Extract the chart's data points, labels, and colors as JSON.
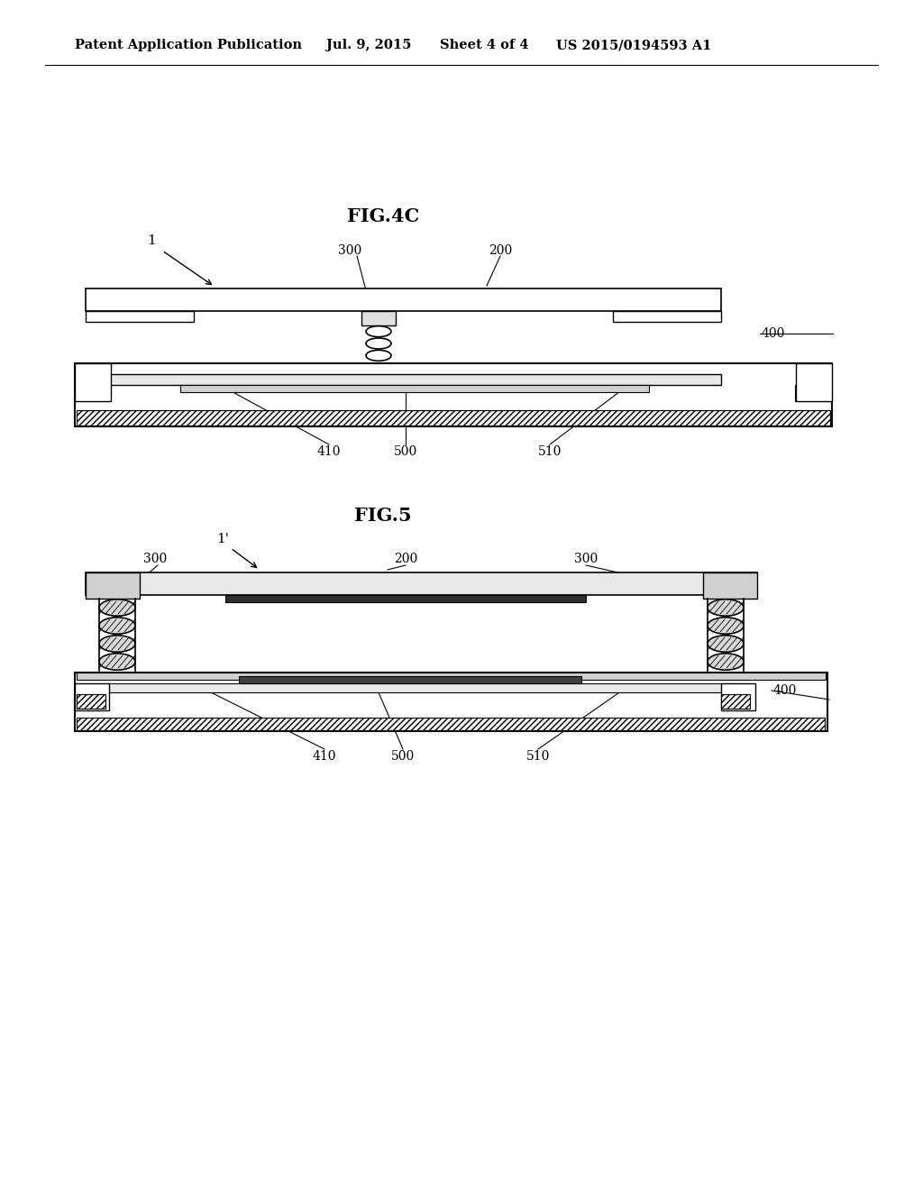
{
  "bg_color": "#ffffff",
  "header_text": "Patent Application Publication",
  "header_date": "Jul. 9, 2015",
  "header_sheet": "Sheet 4 of 4",
  "header_patent": "US 2015/0194593 A1",
  "fig4c_title": "FIG.4C",
  "fig5_title": "FIG.5",
  "line_color": "#000000",
  "gray_light": "#e8e8e8",
  "gray_mid": "#d0d0d0",
  "gray_dark": "#a0a0a0",
  "white": "#ffffff"
}
